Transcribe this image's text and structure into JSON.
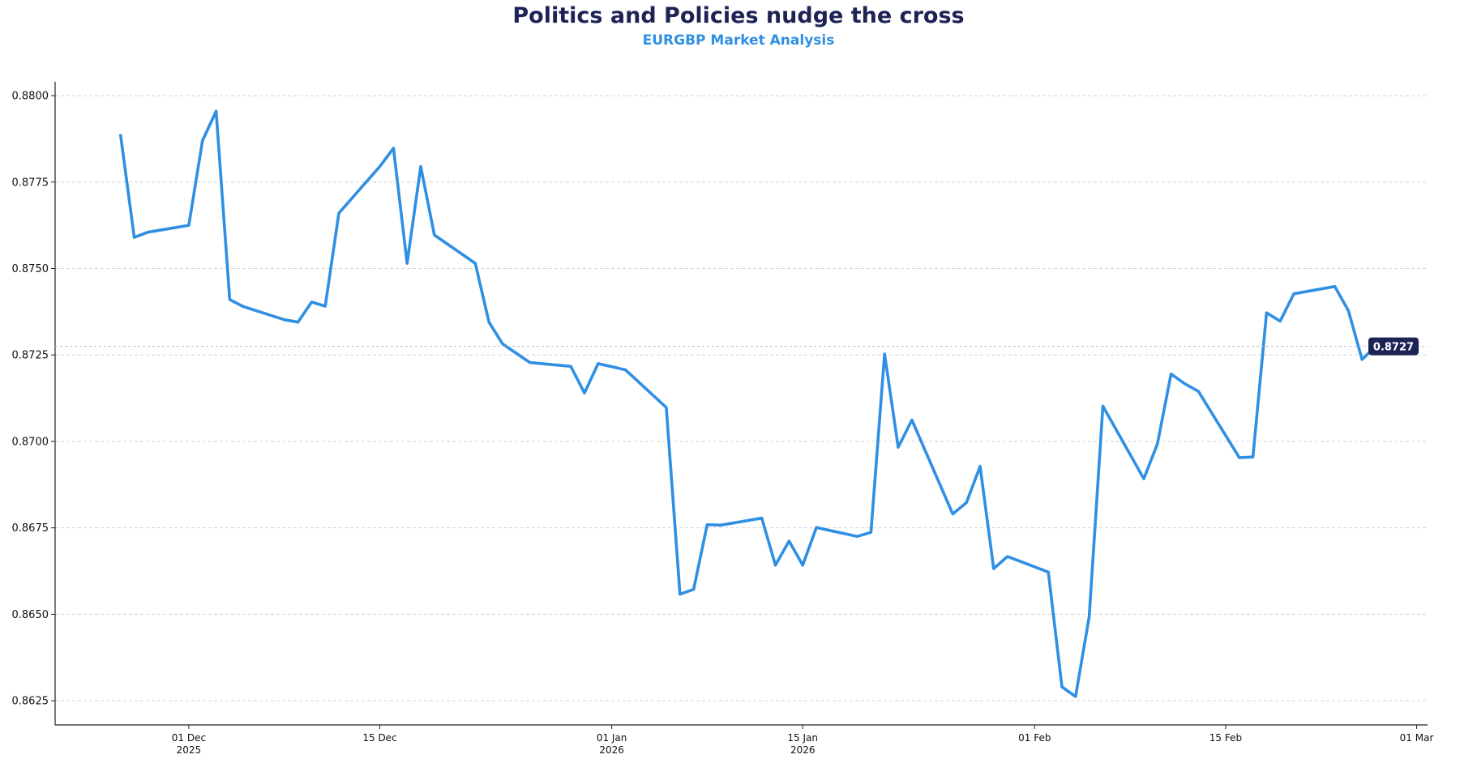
{
  "chart_data": {
    "type": "line",
    "title": "Politics and Policies nudge the cross",
    "subtitle": "EURGBP Market Analysis",
    "xlabel": "",
    "ylabel": "",
    "ylim": [
      0.8618,
      0.8804
    ],
    "y_ticks": [
      "0.8625",
      "0.8650",
      "0.8675",
      "0.8700",
      "0.8725",
      "0.8750",
      "0.8775",
      "0.8800"
    ],
    "x_range_days": [
      -9.8,
      90.8
    ],
    "x_ticks": [
      {
        "day": 0,
        "line1": "01 Dec",
        "line2": "2025"
      },
      {
        "day": 14,
        "line1": "15 Dec",
        "line2": ""
      },
      {
        "day": 31,
        "line1": "01 Jan",
        "line2": "2026"
      },
      {
        "day": 45,
        "line1": "15 Jan",
        "line2": "2026"
      },
      {
        "day": 62,
        "line1": "01 Feb",
        "line2": ""
      },
      {
        "day": 76,
        "line1": "15 Feb",
        "line2": ""
      },
      {
        "day": 90,
        "line1": "01 Mar",
        "line2": ""
      }
    ],
    "grid": "horizontal dashed",
    "series": [
      {
        "name": "EURGBP",
        "color": "#2f8fe3",
        "points": [
          [
            -5,
            0.87885
          ],
          [
            -4,
            0.8759
          ],
          [
            -3,
            0.87605
          ],
          [
            0,
            0.87625
          ],
          [
            1,
            0.8787
          ],
          [
            2,
            0.87955
          ],
          [
            3,
            0.8741
          ],
          [
            4,
            0.8739
          ],
          [
            7,
            0.87352
          ],
          [
            8,
            0.87345
          ],
          [
            9,
            0.87403
          ],
          [
            10,
            0.87391
          ],
          [
            11,
            0.8766
          ],
          [
            14,
            0.87795
          ],
          [
            15,
            0.87848
          ],
          [
            16,
            0.87515
          ],
          [
            17,
            0.87795
          ],
          [
            18,
            0.87597
          ],
          [
            21,
            0.87515
          ],
          [
            22,
            0.87345
          ],
          [
            23,
            0.87282
          ],
          [
            25,
            0.87228
          ],
          [
            28,
            0.87217
          ],
          [
            29,
            0.8714
          ],
          [
            30,
            0.87225
          ],
          [
            32,
            0.87207
          ],
          [
            35,
            0.87098
          ],
          [
            36,
            0.86558
          ],
          [
            37,
            0.86572
          ],
          [
            38,
            0.86759
          ],
          [
            39,
            0.86758
          ],
          [
            42,
            0.86778
          ],
          [
            43,
            0.86642
          ],
          [
            44,
            0.86712
          ],
          [
            45,
            0.86642
          ],
          [
            46,
            0.86751
          ],
          [
            49,
            0.86725
          ],
          [
            50,
            0.86737
          ],
          [
            51,
            0.87253
          ],
          [
            52,
            0.86983
          ],
          [
            53,
            0.87062
          ],
          [
            56,
            0.8679
          ],
          [
            57,
            0.86823
          ],
          [
            58,
            0.86928
          ],
          [
            59,
            0.86632
          ],
          [
            60,
            0.86667
          ],
          [
            63,
            0.86622
          ],
          [
            64,
            0.8629
          ],
          [
            65,
            0.86262
          ],
          [
            66,
            0.86493
          ],
          [
            67,
            0.87102
          ],
          [
            70,
            0.86892
          ],
          [
            71,
            0.86993
          ],
          [
            72,
            0.87195
          ],
          [
            73,
            0.87167
          ],
          [
            74,
            0.87145
          ],
          [
            77,
            0.86953
          ],
          [
            78,
            0.86955
          ],
          [
            79,
            0.87372
          ],
          [
            80,
            0.87348
          ],
          [
            81,
            0.87427
          ],
          [
            84,
            0.87448
          ],
          [
            85,
            0.87378
          ],
          [
            86,
            0.87237
          ],
          [
            87,
            0.87275
          ]
        ]
      }
    ],
    "last_value_label": "0.8727",
    "last_value": 0.87275
  }
}
